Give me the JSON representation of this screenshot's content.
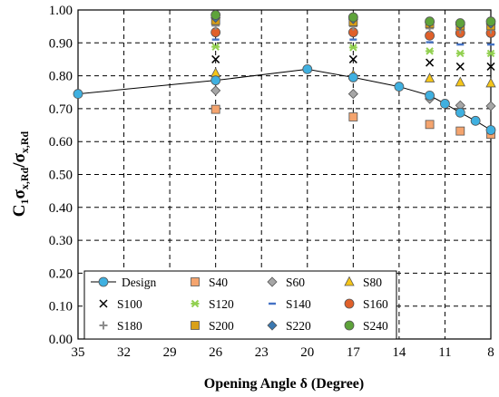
{
  "chart_data": {
    "type": "scatter",
    "xlabel": "Opening Angle δ (Degree)",
    "ylabel_main": "C",
    "ylabel_sub1": "1",
    "ylabel_sigma1": "σ",
    "ylabel_sub2": "x,Rd",
    "ylabel_slash": "/σ",
    "ylabel_sub3": "x,Rd",
    "xlim": [
      35,
      8
    ],
    "ylim": [
      0,
      1
    ],
    "xticks": [
      "35",
      "32",
      "29",
      "26",
      "23",
      "20",
      "17",
      "14",
      "11",
      "8"
    ],
    "yticks": [
      "0.00",
      "0.10",
      "0.20",
      "0.30",
      "0.40",
      "0.50",
      "0.60",
      "0.70",
      "0.80",
      "0.90",
      "1.00"
    ],
    "grid": true,
    "legend_location": "bottom-left",
    "legend_entries": [
      "Design",
      "S40",
      "S60",
      "S80",
      "S100",
      "S120",
      "S140",
      "S160",
      "S180",
      "S200",
      "S220",
      "S240"
    ],
    "series": [
      {
        "name": "Design",
        "marker": "circle-line",
        "color": "#3fb0e0",
        "x": [
          35,
          26,
          20,
          17,
          14,
          12,
          11,
          10,
          9,
          8
        ],
        "y": [
          0.745,
          0.786,
          0.82,
          0.795,
          0.767,
          0.74,
          0.715,
          0.688,
          0.663,
          0.635
        ]
      },
      {
        "name": "S40",
        "marker": "square",
        "color": "#f4a46e",
        "x": [
          26,
          17,
          12,
          10,
          8
        ],
        "y": [
          0.698,
          0.675,
          0.652,
          0.632,
          0.622
        ]
      },
      {
        "name": "S60",
        "marker": "diamond",
        "color": "#a6a6a6",
        "x": [
          26,
          17,
          12,
          10,
          8
        ],
        "y": [
          0.755,
          0.745,
          0.73,
          0.71,
          0.708
        ]
      },
      {
        "name": "S80",
        "marker": "triangle",
        "color": "#f5c518",
        "x": [
          26,
          17,
          12,
          10,
          8
        ],
        "y": [
          0.808,
          0.802,
          0.792,
          0.78,
          0.777
        ]
      },
      {
        "name": "S100",
        "marker": "x",
        "color": "#000000",
        "x": [
          26,
          17,
          12,
          10,
          8
        ],
        "y": [
          0.85,
          0.85,
          0.84,
          0.828,
          0.828
        ]
      },
      {
        "name": "S120",
        "marker": "star",
        "color": "#92d050",
        "x": [
          26,
          17,
          12,
          10,
          8
        ],
        "y": [
          0.888,
          0.886,
          0.875,
          0.868,
          0.868
        ]
      },
      {
        "name": "S140",
        "marker": "dash",
        "color": "#4472c4",
        "x": [
          26,
          17,
          12,
          10,
          8
        ],
        "y": [
          0.91,
          0.91,
          0.902,
          0.895,
          0.895
        ]
      },
      {
        "name": "S160",
        "marker": "circle",
        "color": "#e0602a",
        "x": [
          26,
          17,
          12,
          10,
          8
        ],
        "y": [
          0.932,
          0.932,
          0.922,
          0.93,
          0.93
        ]
      },
      {
        "name": "S180",
        "marker": "plus",
        "color": "#8c8c8c",
        "x": [
          26,
          17,
          12,
          10,
          8
        ],
        "y": [
          0.952,
          0.95,
          0.944,
          0.94,
          0.94
        ]
      },
      {
        "name": "S200",
        "marker": "square",
        "color": "#d9a018",
        "x": [
          26,
          17,
          12,
          10,
          8
        ],
        "y": [
          0.968,
          0.964,
          0.958,
          0.952,
          0.952
        ]
      },
      {
        "name": "S220",
        "marker": "diamond",
        "color": "#3a78b0",
        "x": [
          26,
          17,
          12,
          10,
          8
        ],
        "y": [
          0.976,
          0.972,
          0.962,
          0.955,
          0.958
        ]
      },
      {
        "name": "S240",
        "marker": "circle",
        "color": "#5ea33a",
        "x": [
          26,
          17,
          12,
          10,
          8
        ],
        "y": [
          0.985,
          0.978,
          0.965,
          0.96,
          0.965
        ]
      }
    ]
  }
}
